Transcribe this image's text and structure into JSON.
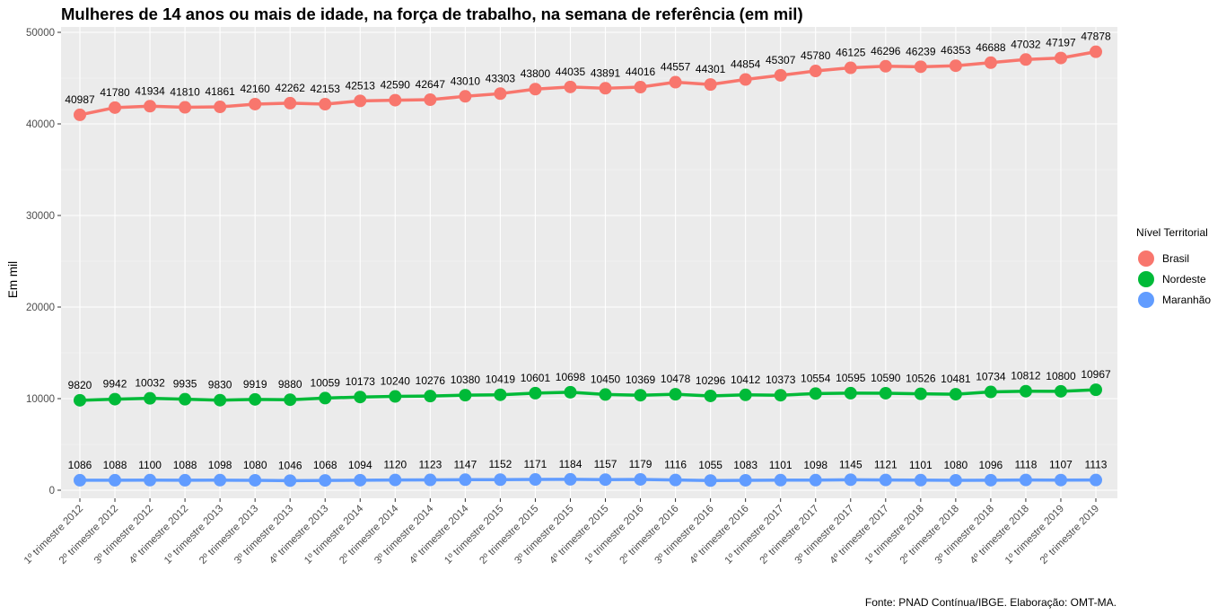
{
  "chart_data": {
    "type": "line",
    "title": "Mulheres de 14 anos ou mais de idade, na força de trabalho, na semana de referência (em mil)",
    "xlabel": "",
    "ylabel": "Em mil",
    "ylim": [
      0,
      50000
    ],
    "yticks": [
      "0",
      "10000",
      "20000",
      "30000",
      "40000",
      "50000"
    ],
    "grid": true,
    "legend_title": "Nível Territorial",
    "legend_position": "right",
    "caption": "Fonte: PNAD Contínua/IBGE. Elaboração: OMT-MA.",
    "categories": [
      "1º trimestre 2012",
      "2º trimestre 2012",
      "3º trimestre 2012",
      "4º trimestre 2012",
      "1º trimestre 2013",
      "2º trimestre 2013",
      "3º trimestre 2013",
      "4º trimestre 2013",
      "1º trimestre 2014",
      "2º trimestre 2014",
      "3º trimestre 2014",
      "4º trimestre 2014",
      "1º trimestre 2015",
      "2º trimestre 2015",
      "3º trimestre 2015",
      "4º trimestre 2015",
      "1º trimestre 2016",
      "2º trimestre 2016",
      "3º trimestre 2016",
      "4º trimestre 2016",
      "1º trimestre 2017",
      "2º trimestre 2017",
      "3º trimestre 2017",
      "4º trimestre 2017",
      "1º trimestre 2018",
      "2º trimestre 2018",
      "3º trimestre 2018",
      "4º trimestre 2018",
      "1º trimestre 2019",
      "2º trimestre 2019"
    ],
    "series": [
      {
        "name": "Brasil",
        "color": "#F8766D",
        "values": [
          40987,
          41780,
          41934,
          41810,
          41861,
          42160,
          42262,
          42153,
          42513,
          42590,
          42647,
          43010,
          43303,
          43800,
          44035,
          43891,
          44016,
          44557,
          44301,
          44854,
          45307,
          45780,
          46125,
          46296,
          46239,
          46353,
          46688,
          47032,
          47197,
          47878
        ]
      },
      {
        "name": "Nordeste",
        "color": "#00BA38",
        "values": [
          9820,
          9942,
          10032,
          9935,
          9830,
          9919,
          9880,
          10059,
          10173,
          10240,
          10276,
          10380,
          10419,
          10601,
          10698,
          10450,
          10369,
          10478,
          10296,
          10412,
          10373,
          10554,
          10595,
          10590,
          10526,
          10481,
          10734,
          10812,
          10800,
          10967
        ]
      },
      {
        "name": "Maranhão",
        "color": "#619CFF",
        "values": [
          1086,
          1088,
          1100,
          1088,
          1098,
          1080,
          1046,
          1068,
          1094,
          1120,
          1123,
          1147,
          1152,
          1171,
          1184,
          1157,
          1179,
          1116,
          1055,
          1083,
          1101,
          1098,
          1145,
          1121,
          1101,
          1080,
          1096,
          1118,
          1107,
          1113
        ]
      }
    ]
  }
}
